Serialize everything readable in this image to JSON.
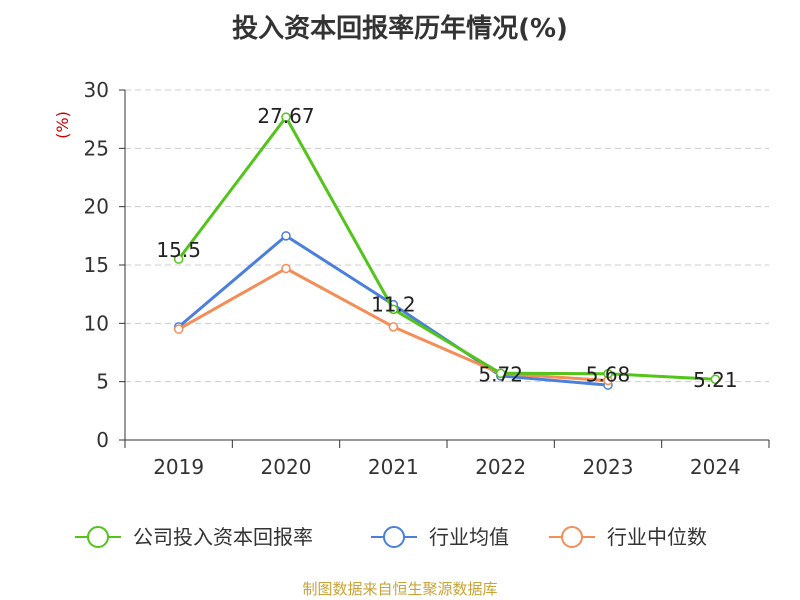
{
  "title": "投入资本回报率历年情况(%)",
  "source": "制图数据来自恒生聚源数据库",
  "colors": {
    "company": "#52c41a",
    "industry_avg": "#4a7fdc",
    "industry_median": "#f58d57",
    "source_text": "#c9a33a",
    "unit_text": "#cc0000"
  },
  "chart_data": {
    "type": "line",
    "ylabel": "(%)",
    "ylim": [
      0,
      30
    ],
    "yticks": [
      0,
      5,
      10,
      15,
      20,
      25,
      30
    ],
    "grid": true,
    "legend_position": "bottom",
    "categories": [
      "2019",
      "2020",
      "2021",
      "2022",
      "2023",
      "2024"
    ],
    "series": [
      {
        "name": "公司投入资本回报率",
        "color": "#52c41a",
        "values": [
          15.5,
          27.67,
          11.2,
          5.72,
          5.68,
          5.21
        ],
        "labels": [
          "15.5",
          "27.67",
          "11.2",
          "5.72",
          "5.68",
          "5.21"
        ]
      },
      {
        "name": "行业均值",
        "color": "#4a7fdc",
        "values": [
          9.7,
          17.5,
          11.6,
          5.5,
          4.7,
          null
        ]
      },
      {
        "name": "行业中位数",
        "color": "#f58d57",
        "values": [
          9.5,
          14.7,
          9.7,
          5.7,
          5.1,
          null
        ]
      }
    ]
  }
}
